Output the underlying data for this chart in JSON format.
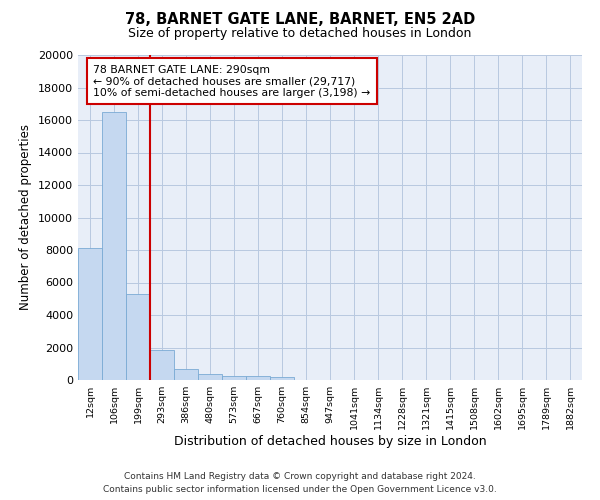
{
  "title": "78, BARNET GATE LANE, BARNET, EN5 2AD",
  "subtitle": "Size of property relative to detached houses in London",
  "xlabel": "Distribution of detached houses by size in London",
  "ylabel": "Number of detached properties",
  "bar_color": "#c5d8f0",
  "bar_edge_color": "#7aaad4",
  "background_color": "#e8eef8",
  "grid_color": "#b8c8e0",
  "vline_color": "#cc0000",
  "categories": [
    "12sqm",
    "106sqm",
    "199sqm",
    "293sqm",
    "386sqm",
    "480sqm",
    "573sqm",
    "667sqm",
    "760sqm",
    "854sqm",
    "947sqm",
    "1041sqm",
    "1134sqm",
    "1228sqm",
    "1321sqm",
    "1415sqm",
    "1508sqm",
    "1602sqm",
    "1695sqm",
    "1789sqm",
    "1882sqm"
  ],
  "values": [
    8100,
    16500,
    5300,
    1850,
    700,
    350,
    270,
    220,
    170,
    0,
    0,
    0,
    0,
    0,
    0,
    0,
    0,
    0,
    0,
    0,
    0
  ],
  "annotation_text_line1": "78 BARNET GATE LANE: 290sqm",
  "annotation_text_line2": "← 90% of detached houses are smaller (29,717)",
  "annotation_text_line3": "10% of semi-detached houses are larger (3,198) →",
  "footer_line1": "Contains HM Land Registry data © Crown copyright and database right 2024.",
  "footer_line2": "Contains public sector information licensed under the Open Government Licence v3.0.",
  "ylim": [
    0,
    20000
  ],
  "yticks": [
    0,
    2000,
    4000,
    6000,
    8000,
    10000,
    12000,
    14000,
    16000,
    18000,
    20000
  ],
  "vline_pos": 2.5
}
